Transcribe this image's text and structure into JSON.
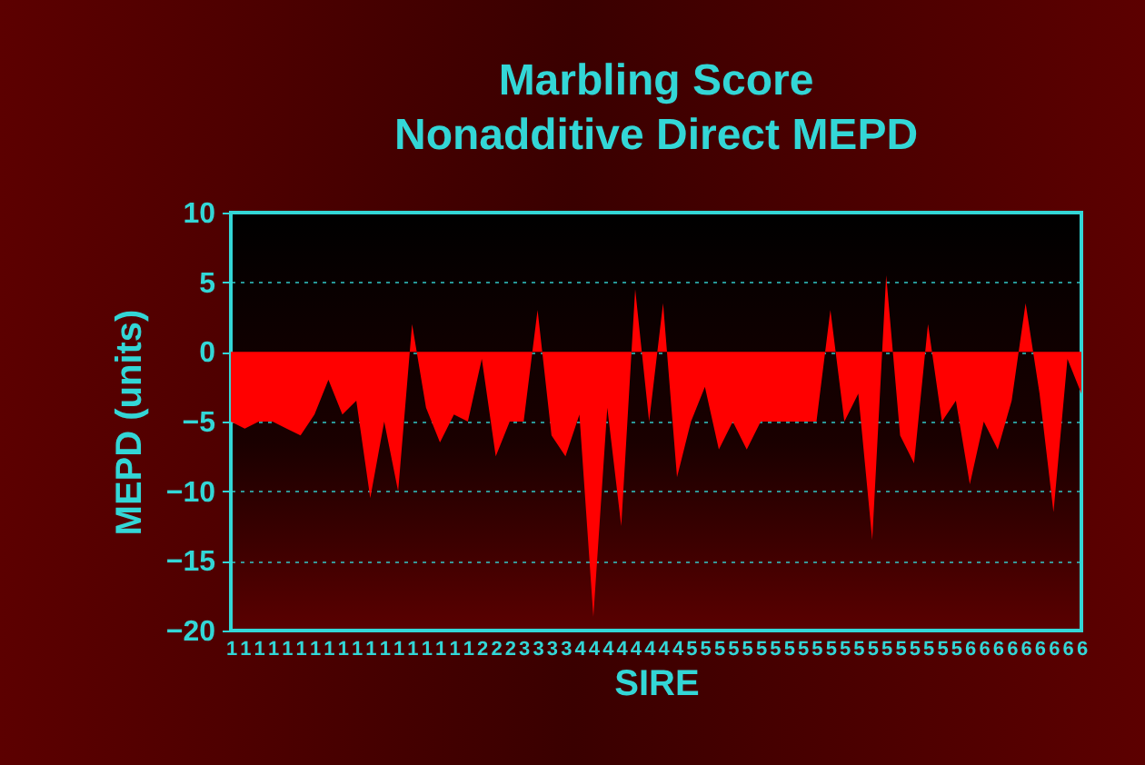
{
  "chart_data": {
    "type": "area",
    "title": "Marbling Score",
    "subtitle": "Nonadditive Direct MEPD",
    "xlabel": "SIRE",
    "ylabel": "MEPD (units)",
    "categories": [
      "1",
      "1",
      "1",
      "1",
      "1",
      "1",
      "1",
      "1",
      "1",
      "1",
      "1",
      "1",
      "1",
      "1",
      "1",
      "1",
      "1",
      "1",
      "2",
      "2",
      "2",
      "3",
      "3",
      "3",
      "3",
      "4",
      "4",
      "4",
      "4",
      "4",
      "4",
      "4",
      "4",
      "5",
      "5",
      "5",
      "5",
      "5",
      "5",
      "5",
      "5",
      "5",
      "5",
      "5",
      "5",
      "5",
      "5",
      "5",
      "5",
      "5",
      "5",
      "5",
      "5",
      "6",
      "6",
      "6",
      "6",
      "6",
      "6",
      "6",
      "6",
      "6"
    ],
    "series": [
      {
        "color": "#ff0000",
        "values": [
          -5,
          -5.5,
          -5,
          -5,
          -5.5,
          -6,
          -4.5,
          -2,
          -4.5,
          -3.5,
          -10.5,
          -5,
          -10,
          2,
          -4,
          -6.5,
          -4.5,
          -5,
          -0.5,
          -7.5,
          -5,
          -5,
          3,
          -6,
          -7.5,
          -4.5,
          -19,
          -4,
          -12.5,
          4.5,
          -5,
          3.5,
          -9,
          -5,
          -2.5,
          -7,
          -5,
          -7,
          -5,
          -5,
          -5,
          -5,
          -5,
          3,
          -5,
          -3,
          -13.5,
          5.5,
          -6,
          -8,
          2,
          -5,
          -3.5,
          -9.5,
          -5,
          -7,
          -3.5,
          3.5,
          -3,
          -11.5,
          -0.5,
          -3
        ]
      }
    ],
    "ylim": [
      -20,
      10
    ],
    "yticks": [
      -20,
      -15,
      -10,
      -5,
      0,
      5,
      10
    ],
    "grid": "y"
  }
}
